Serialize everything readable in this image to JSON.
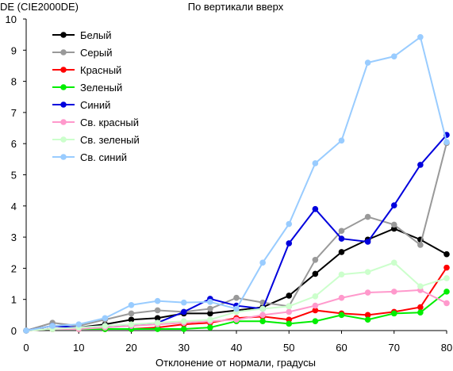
{
  "chart_data": {
    "type": "line",
    "title": "По вертикали вверх",
    "ylabel": "DE (CIE2000DE)",
    "xlabel": "Отклонение от нормали, градусы",
    "xlim": [
      0,
      80
    ],
    "ylim": [
      0,
      10
    ],
    "xticks": [
      0,
      10,
      20,
      30,
      40,
      50,
      60,
      70,
      80
    ],
    "yticks": [
      0,
      1,
      2,
      3,
      4,
      5,
      6,
      7,
      8,
      9,
      10
    ],
    "grid": false,
    "legend": "top-left",
    "x": [
      0,
      5,
      10,
      15,
      20,
      25,
      30,
      35,
      40,
      45,
      50,
      55,
      60,
      65,
      70,
      75,
      80
    ],
    "series": [
      {
        "name": "Белый",
        "color": "#000000",
        "values": [
          0,
          0.15,
          0.1,
          0.2,
          0.35,
          0.4,
          0.55,
          0.55,
          0.65,
          0.75,
          1.12,
          1.82,
          2.52,
          2.92,
          3.27,
          2.92,
          2.45
        ]
      },
      {
        "name": "Серый",
        "color": "#999999",
        "values": [
          0,
          0.25,
          0.15,
          0.35,
          0.55,
          0.65,
          0.6,
          0.7,
          1.05,
          0.9,
          0.78,
          2.27,
          3.2,
          3.65,
          3.4,
          2.75,
          6.02
        ]
      },
      {
        "name": "Красный",
        "color": "#ff0000",
        "values": [
          0,
          0.05,
          0.05,
          0.05,
          0.05,
          0.1,
          0.2,
          0.25,
          0.4,
          0.45,
          0.35,
          0.65,
          0.55,
          0.5,
          0.6,
          0.75,
          2.02
        ]
      },
      {
        "name": "Зеленый",
        "color": "#00ee00",
        "values": [
          0,
          0.05,
          0.05,
          0.05,
          0.05,
          0.05,
          0.05,
          0.1,
          0.3,
          0.3,
          0.22,
          0.3,
          0.5,
          0.35,
          0.55,
          0.58,
          1.25
        ]
      },
      {
        "name": "Синий",
        "color": "#0000dd",
        "values": [
          0,
          0.15,
          0.1,
          0.15,
          0.15,
          0.25,
          0.6,
          1.02,
          0.8,
          0.7,
          2.8,
          3.9,
          2.95,
          2.85,
          4.02,
          5.32,
          6.28
        ]
      },
      {
        "name": "Св. красный",
        "color": "#ff99cc",
        "values": [
          0,
          0.05,
          0.05,
          0.1,
          0.15,
          0.2,
          0.25,
          0.3,
          0.35,
          0.5,
          0.6,
          0.8,
          1.05,
          1.22,
          1.25,
          1.3,
          0.88
        ]
      },
      {
        "name": "Св. зеленый",
        "color": "#ccffcc",
        "values": [
          0,
          0.05,
          0.1,
          0.15,
          0.2,
          0.25,
          0.3,
          0.35,
          0.6,
          0.7,
          0.78,
          1.1,
          1.8,
          1.88,
          2.18,
          1.42,
          1.68
        ]
      },
      {
        "name": "Св. синий",
        "color": "#99ccff",
        "values": [
          0,
          0.15,
          0.2,
          0.4,
          0.82,
          0.95,
          0.9,
          0.92,
          0.7,
          2.18,
          3.42,
          5.37,
          6.1,
          8.6,
          8.8,
          9.42,
          6.05
        ]
      }
    ]
  }
}
